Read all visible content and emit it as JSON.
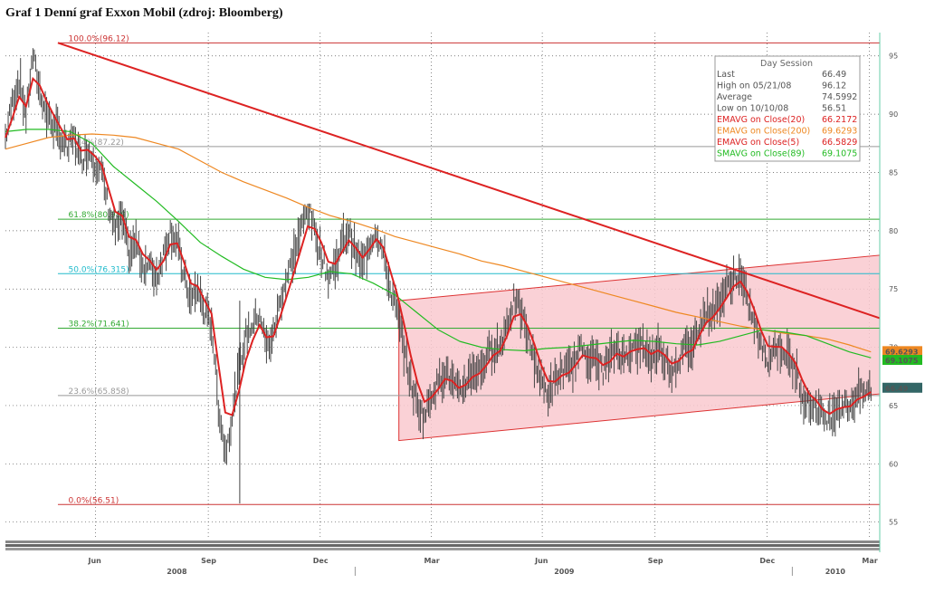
{
  "title": "Graf 1 Denní graf Exxon Mobil (zdroj: Bloomberg)",
  "chart_data": {
    "type": "line",
    "y_ticks": [
      "95",
      "90",
      "85",
      "80",
      "75",
      "70",
      "65",
      "60",
      "55"
    ],
    "y_tick_values": [
      95,
      90,
      85,
      80,
      75,
      70,
      65,
      60,
      55
    ],
    "ylim": [
      53.5,
      97
    ],
    "x_month_labels": [
      "Jun",
      "Sep",
      "Dec",
      "Mar",
      "Jun",
      "Sep",
      "Dec",
      "Mar"
    ],
    "x_year_labels": [
      "2008",
      "2009",
      "2010"
    ],
    "fib_levels": [
      {
        "label": "100.0%(96.12)",
        "value": 96.12,
        "color": "#cc3333"
      },
      {
        "label": "76.4%(87.22)",
        "value": 87.22,
        "color": "#999999"
      },
      {
        "label": "61.8%(80.989)",
        "value": 80.989,
        "color": "#33aa33"
      },
      {
        "label": "50.0%(76.315)",
        "value": 76.315,
        "color": "#22bbcc"
      },
      {
        "label": "38.2%(71.641)",
        "value": 71.641,
        "color": "#33aa33"
      },
      {
        "label": "23.6%(65.858)",
        "value": 65.858,
        "color": "#999999"
      },
      {
        "label": "0.0%(56.51)",
        "value": 56.51,
        "color": "#cc3333"
      }
    ],
    "legend_title": "Day Session",
    "legend": [
      {
        "label": "Last",
        "value": "66.49",
        "color": "#555555"
      },
      {
        "label": "High on 05/21/08",
        "value": "96.12",
        "color": "#555555"
      },
      {
        "label": "Average",
        "value": "74.5992",
        "color": "#555555"
      },
      {
        "label": "Low on 10/10/08",
        "value": "56.51",
        "color": "#555555"
      },
      {
        "label": "EMAVG on Close(20)",
        "value": "66.2172",
        "color": "#dd2222"
      },
      {
        "label": "EMAVG on Close(200)",
        "value": "69.6293",
        "color": "#ee8822"
      },
      {
        "label": "EMAVG on Close(5)",
        "value": "66.5829",
        "color": "#dd2222"
      },
      {
        "label": "SMAVG on Close(89)",
        "value": "69.1075",
        "color": "#22bb22"
      }
    ],
    "right_tags": [
      {
        "label": "69.6293",
        "value": 69.63,
        "color": "#ee8822"
      },
      {
        "label": "69.1075",
        "value": 69.11,
        "color": "#22bb22"
      },
      {
        "label": "66.49",
        "value": 66.49,
        "color": "#336666"
      }
    ],
    "price": [
      88,
      91,
      93,
      90,
      95,
      92,
      90,
      89,
      88,
      87,
      88,
      86,
      87,
      86,
      85,
      82,
      80,
      81,
      78,
      79,
      77,
      77,
      76,
      78,
      80,
      79,
      76,
      74,
      75,
      73,
      72,
      65,
      61,
      64,
      68,
      71,
      72,
      73,
      70,
      71,
      74,
      76,
      78,
      80,
      82,
      80,
      78,
      76,
      77,
      79,
      80,
      78,
      77,
      79,
      80,
      78,
      75,
      73,
      70,
      67,
      65,
      64,
      66,
      67,
      68,
      67,
      66,
      67,
      68,
      68,
      69,
      70,
      70,
      72,
      74,
      73,
      71,
      69,
      67,
      66,
      67,
      68,
      68,
      69,
      70,
      69,
      69,
      68,
      69,
      70,
      69,
      70,
      70,
      70,
      69,
      70,
      69,
      68,
      69,
      70,
      70,
      72,
      73,
      73,
      74,
      75,
      76,
      76,
      74,
      72,
      70,
      69,
      70,
      70,
      69,
      68,
      66,
      65,
      65,
      64,
      64,
      65,
      65,
      65,
      66,
      66,
      66.49
    ],
    "ema200": [
      87,
      87.5,
      88,
      88.2,
      88.3,
      88.2,
      88,
      87.5,
      87,
      86,
      85,
      84.2,
      83.5,
      82.8,
      82,
      81.3,
      80.8,
      80.2,
      79.5,
      79,
      78.5,
      78,
      77.4,
      77,
      76.5,
      76,
      75.5,
      75,
      74.5,
      74,
      73.5,
      73,
      72.6,
      72.2,
      71.8,
      71.5,
      71.2,
      71,
      70.7,
      70.2,
      69.6
    ],
    "sma89": [
      88.5,
      88.7,
      88.7,
      88.5,
      87.5,
      85.5,
      84,
      82.5,
      80.8,
      79,
      77.8,
      76.7,
      76,
      75.8,
      76,
      76.5,
      76.3,
      75.5,
      74.5,
      73,
      71.5,
      70.5,
      70,
      69.8,
      69.7,
      69.9,
      70,
      70.2,
      70.4,
      70.6,
      70.5,
      70.3,
      70.2,
      70.5,
      71,
      71.5,
      71.3,
      71,
      70.3,
      69.6,
      69.1
    ],
    "trendline_down": {
      "from": [
        0.06,
        96.12
      ],
      "to": [
        1.0,
        72.5
      ]
    },
    "channel_upper": {
      "from": [
        0.45,
        74
      ],
      "to": [
        1.0,
        77.9
      ]
    },
    "channel_lower": {
      "from": [
        0.45,
        62
      ],
      "to": [
        1.0,
        66
      ]
    }
  }
}
